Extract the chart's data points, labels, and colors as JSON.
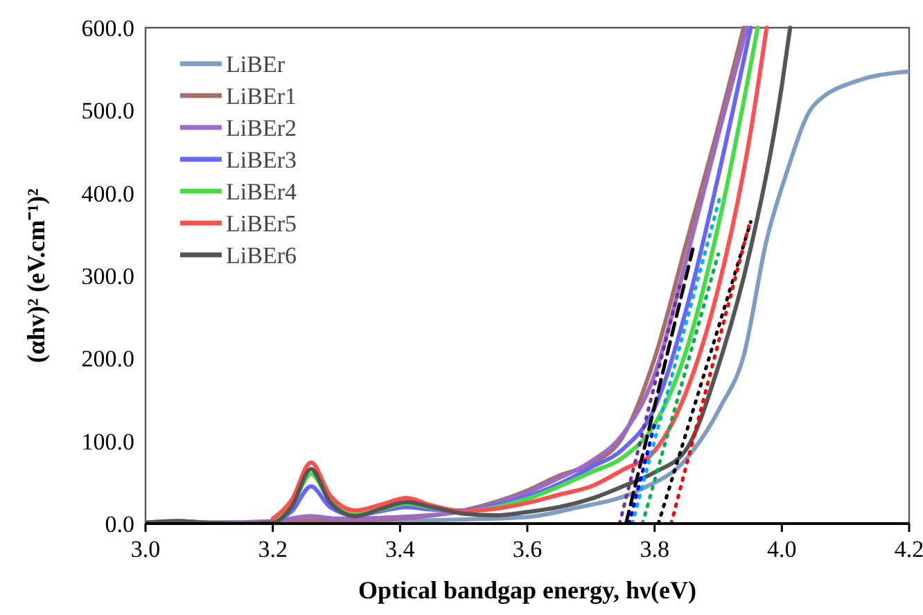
{
  "chart_data": {
    "type": "line",
    "xlabel": "Optical bandgap energy, hν(eV)",
    "ylabel": "(αhv)² (eV.cm⁻¹)²",
    "xlim": [
      3.0,
      4.2
    ],
    "ylim": [
      0,
      600
    ],
    "xticks": [
      {
        "value": 3.0,
        "label": "3.0"
      },
      {
        "value": 3.2,
        "label": "3.2"
      },
      {
        "value": 3.4,
        "label": "3.4"
      },
      {
        "value": 3.6,
        "label": "3.6"
      },
      {
        "value": 3.8,
        "label": "3.8"
      },
      {
        "value": 4.0,
        "label": "4.0"
      },
      {
        "value": 4.2,
        "label": "4.2"
      }
    ],
    "yticks": [
      {
        "value": 0,
        "label": "0.0"
      },
      {
        "value": 100,
        "label": "100.0"
      },
      {
        "value": 200,
        "label": "200.0"
      },
      {
        "value": 300,
        "label": "300.0"
      },
      {
        "value": 400,
        "label": "400.0"
      },
      {
        "value": 500,
        "label": "500.0"
      },
      {
        "value": 600,
        "label": "600.0"
      }
    ],
    "grid": false,
    "legend": "top left",
    "line_style": "solid",
    "marker": "none",
    "series": [
      {
        "name": "LiBEr",
        "color": "#7f9dc4",
        "x": [
          3.0,
          3.05,
          3.1,
          3.2,
          3.26,
          3.4,
          3.5,
          3.6,
          3.67,
          3.78,
          3.846,
          3.904,
          3.94,
          3.976,
          4.006,
          4.049,
          4.12,
          4.2
        ],
        "values": [
          1,
          3,
          1,
          1,
          2,
          3,
          5,
          8,
          18,
          42,
          75,
          142,
          203,
          343,
          421,
          505,
          536,
          547
        ]
      },
      {
        "name": "LiBEr1",
        "color": "#a86d6d",
        "x": [
          3.0,
          3.05,
          3.1,
          3.2,
          3.26,
          3.3,
          3.4,
          3.5,
          3.6,
          3.65,
          3.7,
          3.75,
          3.8,
          3.85,
          3.9,
          3.94
        ],
        "values": [
          1,
          3,
          1,
          2,
          4,
          3,
          6,
          16,
          40,
          58,
          72,
          105,
          200,
          340,
          480,
          600
        ]
      },
      {
        "name": "LiBEr2",
        "color": "#9b6bc6",
        "x": [
          3.0,
          3.05,
          3.1,
          3.2,
          3.26,
          3.3,
          3.4,
          3.5,
          3.6,
          3.65,
          3.7,
          3.75,
          3.8,
          3.85,
          3.9,
          3.945
        ],
        "values": [
          1,
          3,
          1,
          3,
          9,
          6,
          8,
          15,
          38,
          55,
          75,
          108,
          180,
          320,
          470,
          600
        ]
      },
      {
        "name": "LiBEr3",
        "color": "#6666ff",
        "x": [
          3.2,
          3.23,
          3.26,
          3.29,
          3.33,
          3.37,
          3.41,
          3.45,
          3.5,
          3.55,
          3.6,
          3.65,
          3.7,
          3.75,
          3.8,
          3.85,
          3.9,
          3.951
        ],
        "values": [
          3,
          15,
          45,
          20,
          10,
          15,
          20,
          17,
          16,
          22,
          33,
          48,
          68,
          90,
          140,
          260,
          420,
          600
        ]
      },
      {
        "name": "LiBEr4",
        "color": "#44dd44",
        "x": [
          3.2,
          3.23,
          3.26,
          3.29,
          3.33,
          3.37,
          3.41,
          3.45,
          3.5,
          3.55,
          3.6,
          3.65,
          3.7,
          3.75,
          3.8,
          3.85,
          3.9,
          3.962
        ],
        "values": [
          3,
          22,
          60,
          28,
          11,
          17,
          24,
          19,
          15,
          20,
          30,
          45,
          62,
          80,
          120,
          210,
          360,
          600
        ]
      },
      {
        "name": "LiBEr5",
        "color": "#ff4f4f",
        "x": [
          3.2,
          3.23,
          3.26,
          3.29,
          3.33,
          3.37,
          3.41,
          3.45,
          3.5,
          3.55,
          3.6,
          3.65,
          3.7,
          3.75,
          3.8,
          3.85,
          3.9,
          3.95,
          3.976
        ],
        "values": [
          6,
          29,
          74,
          34,
          16,
          23,
          31,
          22,
          15,
          18,
          25,
          35,
          45,
          65,
          88,
          160,
          285,
          470,
          600
        ]
      },
      {
        "name": "LiBEr6",
        "color": "#555555",
        "x": [
          3.0,
          3.05,
          3.1,
          3.15,
          3.2,
          3.23,
          3.26,
          3.29,
          3.33,
          3.37,
          3.41,
          3.45,
          3.5,
          3.55,
          3.6,
          3.65,
          3.7,
          3.75,
          3.8,
          3.85,
          3.9,
          3.95,
          4.0,
          4.013
        ],
        "values": [
          1,
          3,
          1,
          0,
          1,
          21,
          66,
          26,
          9,
          18,
          26,
          20,
          12,
          10,
          14,
          20,
          30,
          45,
          62,
          90,
          190,
          330,
          530,
          600
        ]
      },
      {
        "color": "#7030a0",
        "line_style": "dotted",
        "x": [
          3.745,
          3.839
        ],
        "values": [
          0,
          287
        ]
      },
      {
        "color": "#000000",
        "line_style": "dashed",
        "x": [
          3.755,
          3.86
        ],
        "values": [
          0,
          332
        ]
      },
      {
        "color": "#00b0f0",
        "line_style": "dotted",
        "x": [
          3.765,
          3.904
        ],
        "values": [
          0,
          399
        ]
      },
      {
        "color": "#0000ff",
        "line_style": "dotted",
        "x": [
          3.76,
          3.8
        ],
        "values": [
          0,
          120
        ]
      },
      {
        "color": "#00b050",
        "line_style": "dotted",
        "x": [
          3.781,
          3.9
        ],
        "values": [
          0,
          326
        ]
      },
      {
        "color": "#000000",
        "line_style": "dotted",
        "x": [
          3.806,
          3.951
        ],
        "values": [
          0,
          365
        ]
      },
      {
        "color": "#ff0000",
        "line_style": "dotted",
        "x": [
          3.826,
          3.948
        ],
        "values": [
          0,
          360
        ]
      }
    ]
  }
}
